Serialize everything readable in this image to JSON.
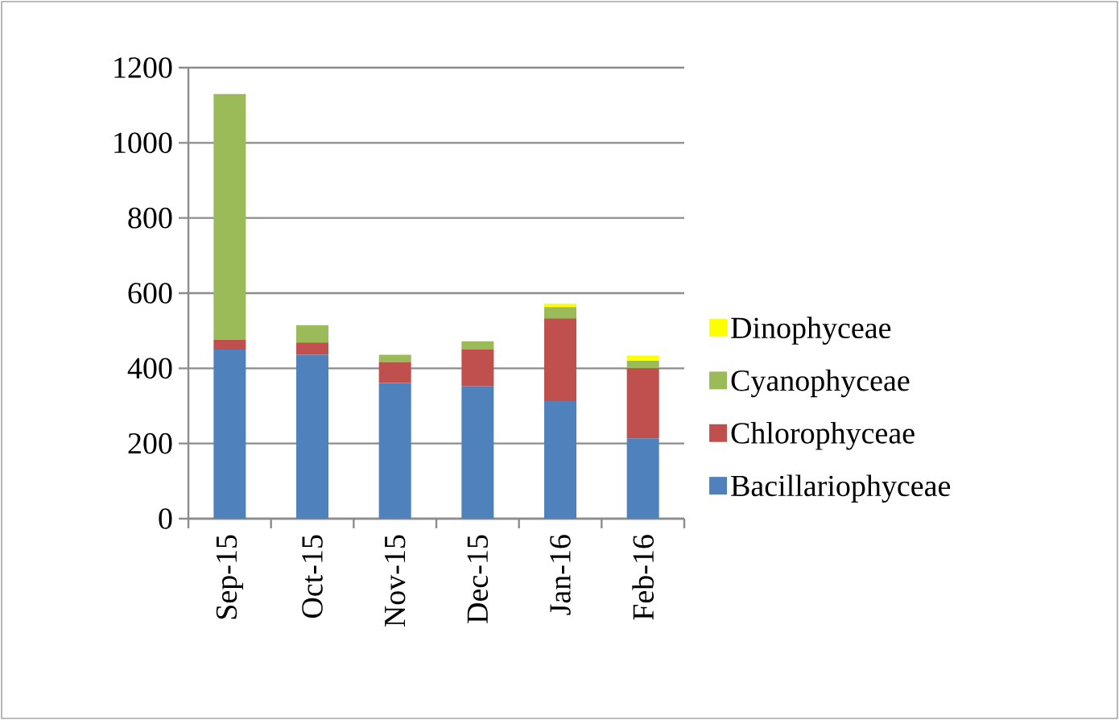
{
  "chart_data": {
    "type": "bar",
    "stacked": true,
    "categories": [
      "Sep-15",
      "Oct-15",
      "Nov-15",
      "Dec-15",
      "Jan-16",
      "Feb-16"
    ],
    "series": [
      {
        "name": "Bacillariophyceae",
        "color": "#4f81bd",
        "values": [
          450,
          436,
          361,
          353,
          313,
          214
        ]
      },
      {
        "name": "Chlorophyceae",
        "color": "#c0504d",
        "values": [
          26,
          33,
          56,
          97,
          220,
          186
        ]
      },
      {
        "name": "Cyanophyceae",
        "color": "#9bbb59",
        "values": [
          654,
          46,
          19,
          22,
          30,
          20
        ]
      },
      {
        "name": "Dinophyceae",
        "color": "#ffff00",
        "values": [
          0,
          0,
          0,
          0,
          9,
          14
        ]
      }
    ],
    "ylim": [
      0,
      1200
    ],
    "yticks": [
      0,
      200,
      400,
      600,
      800,
      1000,
      1200
    ],
    "grid": "y",
    "legend": "right"
  }
}
